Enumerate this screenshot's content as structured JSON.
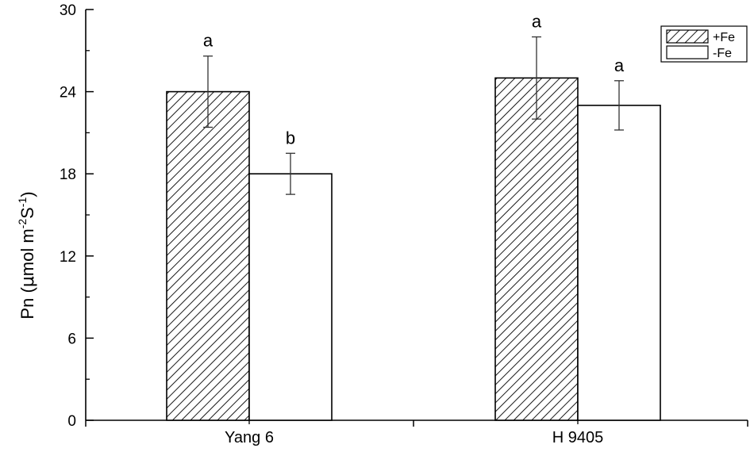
{
  "chart_data": {
    "type": "bar",
    "categories": [
      "Yang 6",
      "H 9405"
    ],
    "series": [
      {
        "name": "+Fe",
        "values": [
          24.0,
          25.0
        ],
        "errors": [
          2.6,
          3.0
        ],
        "significance": [
          "a",
          "a"
        ],
        "fill": "hatched"
      },
      {
        "name": "-Fe",
        "values": [
          18.0,
          23.0
        ],
        "errors": [
          1.5,
          1.8
        ],
        "significance": [
          "b",
          "a"
        ],
        "fill": "white"
      }
    ],
    "ylabel": {
      "prefix": "Pn (",
      "mu": "μ",
      "mid": "mol m",
      "sup1": "-2",
      "s": "S",
      "sup2": "-1",
      "suffix": ")"
    },
    "yticks": [
      "0",
      "6",
      "12",
      "18",
      "24",
      "30"
    ],
    "ylim": [
      0,
      30
    ],
    "grid": false,
    "legend": "top-right",
    "colors": {
      "axis": "#000000",
      "bar_stroke": "#000000",
      "hatch": "#000000",
      "plain_fill": "#ffffff"
    }
  }
}
